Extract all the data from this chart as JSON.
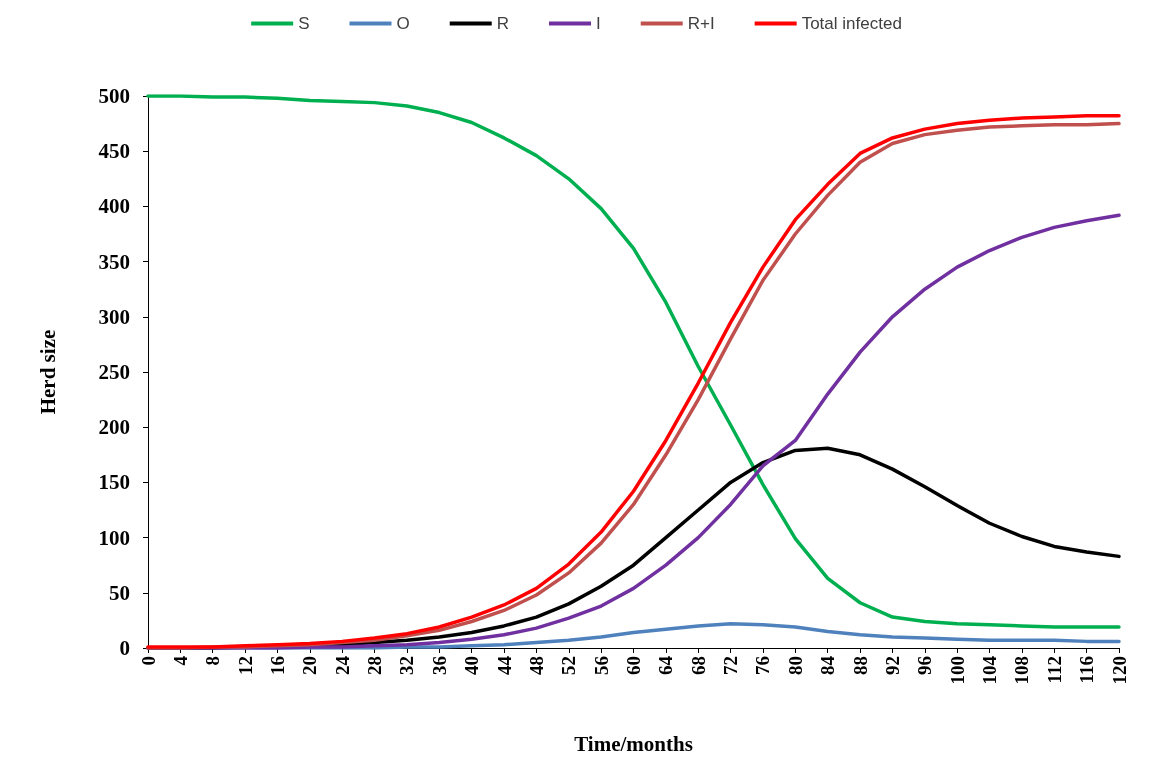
{
  "chart_data": {
    "type": "line",
    "xlabel": "Time/months",
    "ylabel": "Herd size",
    "x": [
      0,
      4,
      8,
      12,
      16,
      20,
      24,
      28,
      32,
      36,
      40,
      44,
      48,
      52,
      56,
      60,
      64,
      68,
      72,
      76,
      80,
      84,
      88,
      92,
      96,
      100,
      104,
      108,
      112,
      116,
      120
    ],
    "series": [
      {
        "name": "S",
        "color": "#00b050",
        "values": [
          500,
          500,
          499,
          499,
          498,
          496,
          495,
          494,
          491,
          485,
          476,
          462,
          446,
          425,
          398,
          362,
          313,
          255,
          202,
          148,
          99,
          63,
          41,
          28,
          24,
          22,
          21,
          20,
          19,
          19,
          19
        ]
      },
      {
        "name": "O",
        "color": "#4f81bd",
        "values": [
          0,
          0,
          0,
          0,
          0,
          0,
          0,
          0,
          1,
          1,
          2,
          3,
          5,
          7,
          10,
          14,
          17,
          20,
          22,
          21,
          19,
          15,
          12,
          10,
          9,
          8,
          7,
          7,
          7,
          6,
          6
        ]
      },
      {
        "name": "R",
        "color": "#000000",
        "values": [
          0,
          0,
          0,
          1,
          1,
          2,
          3,
          5,
          7,
          10,
          14,
          20,
          28,
          40,
          56,
          75,
          100,
          125,
          150,
          168,
          179,
          181,
          175,
          162,
          146,
          129,
          113,
          101,
          92,
          87,
          83
        ]
      },
      {
        "name": "I",
        "color": "#7030a0",
        "values": [
          0,
          0,
          0,
          0,
          0,
          1,
          1,
          2,
          3,
          5,
          8,
          12,
          18,
          27,
          38,
          54,
          75,
          100,
          130,
          165,
          188,
          230,
          268,
          300,
          325,
          345,
          360,
          372,
          381,
          387,
          392
        ]
      },
      {
        "name": "R+I",
        "color": "#c0504d",
        "values": [
          0,
          0,
          1,
          1,
          2,
          3,
          5,
          7,
          11,
          16,
          24,
          34,
          48,
          68,
          95,
          130,
          175,
          225,
          280,
          333,
          375,
          410,
          440,
          457,
          465,
          469,
          472,
          473,
          474,
          474,
          475
        ]
      },
      {
        "name": "Total infected",
        "color": "#ff0000",
        "values": [
          1,
          1,
          1,
          2,
          3,
          4,
          6,
          9,
          13,
          19,
          28,
          39,
          54,
          76,
          105,
          142,
          188,
          240,
          295,
          345,
          388,
          420,
          448,
          462,
          470,
          475,
          478,
          480,
          481,
          482,
          482
        ]
      }
    ],
    "xlim": [
      0,
      120
    ],
    "xticks": [
      0,
      4,
      8,
      12,
      16,
      20,
      24,
      28,
      32,
      36,
      40,
      44,
      48,
      52,
      56,
      60,
      64,
      68,
      72,
      76,
      80,
      84,
      88,
      92,
      96,
      100,
      104,
      108,
      112,
      116,
      120
    ],
    "ylim": [
      0,
      500
    ],
    "yticks": [
      0,
      50,
      100,
      150,
      200,
      250,
      300,
      350,
      400,
      450,
      500
    ],
    "grid": false,
    "legend": "top",
    "marker": "none",
    "line_style": "solid"
  }
}
